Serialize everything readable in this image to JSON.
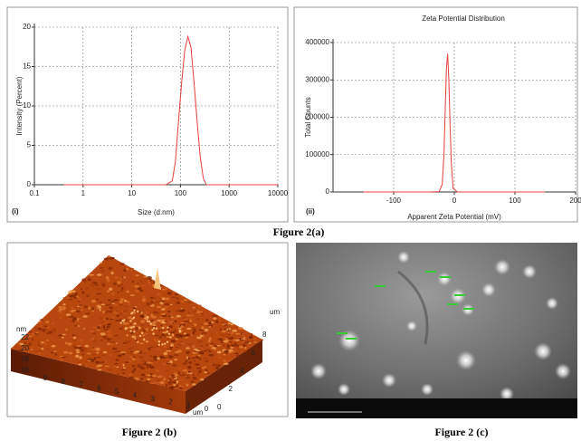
{
  "chart_data": [
    {
      "type": "line",
      "panel_label": "(i)",
      "x_label": "Size (d.nm)",
      "y_label": "Intensity (Percent)",
      "x": [
        0.4,
        50,
        68,
        79,
        91,
        106,
        122,
        142,
        164,
        190,
        220,
        255,
        295,
        340,
        10000
      ],
      "series": [
        {
          "color": "#e8403c",
          "values": [
            0,
            0,
            0.5,
            3,
            8,
            13,
            17,
            18.8,
            17.5,
            13,
            8,
            3.5,
            0.8,
            0,
            0
          ]
        }
      ],
      "x_scale": "log",
      "xlim": [
        0.1,
        10000
      ],
      "xticks": [
        0.1,
        1,
        10,
        100,
        1000,
        10000
      ],
      "ylim": [
        0,
        20
      ],
      "yticks": [
        0,
        5,
        10,
        15,
        20
      ],
      "grid": true
    },
    {
      "type": "line",
      "title": "Zeta Potential Distribution",
      "panel_label": "(ii)",
      "x_label": "Apparent Zeta Potential (mV)",
      "y_label": "Total Counts",
      "x": [
        -150,
        -40,
        -25,
        -20,
        -17,
        -15,
        -13,
        -11,
        -9,
        -7,
        -5,
        -2,
        5,
        150
      ],
      "series": [
        {
          "color": "#e8403c",
          "values": [
            0,
            0,
            1000,
            20000,
            100000,
            220000,
            330000,
            370000,
            300000,
            180000,
            80000,
            10000,
            0,
            0
          ]
        }
      ],
      "x_scale": "linear",
      "xlim": [
        -200,
        200
      ],
      "xticks": [
        -100,
        0,
        100,
        200
      ],
      "ylim": [
        0,
        400000
      ],
      "yticks": [
        0,
        100000,
        200000,
        300000,
        400000
      ],
      "grid": true
    }
  ],
  "captions": {
    "figure_2a": "Figure 2(a)",
    "figure_2b": "Figure 2 (b)",
    "figure_2c": "Figure 2 (c)"
  },
  "afm": {
    "z_unit": "nm",
    "z_ticks": [
      "22",
      "20",
      "18",
      "16"
    ],
    "x_unit": "um",
    "x_ticks": [
      "9",
      "8",
      "7",
      "6",
      "5",
      "4",
      "3",
      "2",
      "1",
      "0"
    ],
    "y_unit": "um",
    "y_ticks": [
      "0",
      "2",
      "4",
      "6",
      "8"
    ]
  }
}
